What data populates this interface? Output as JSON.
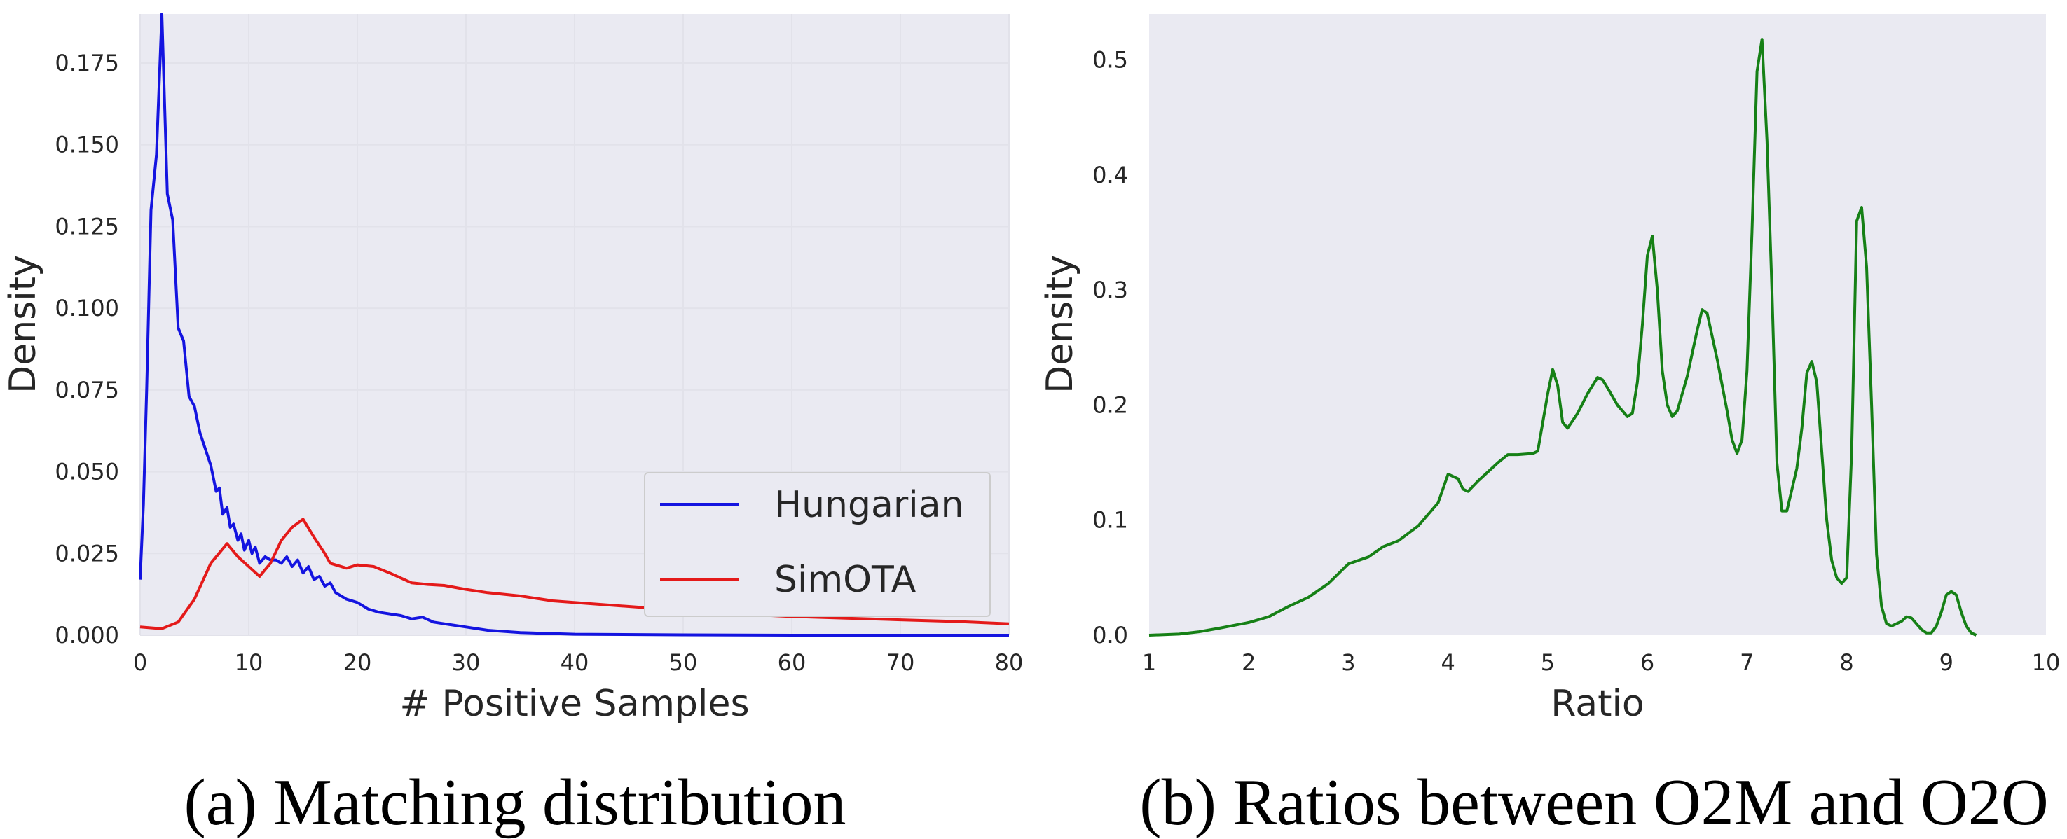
{
  "chart_data": [
    {
      "type": "line",
      "caption": "(a) Matching distribution",
      "xlabel": "# Positive Samples",
      "ylabel": "Density",
      "xlim": [
        0,
        80
      ],
      "ylim": [
        0,
        0.19
      ],
      "xticks": [
        0,
        10,
        20,
        30,
        40,
        50,
        60,
        70,
        80
      ],
      "xtick_labels": [
        "0",
        "10",
        "20",
        "30",
        "40",
        "50",
        "60",
        "70",
        "80"
      ],
      "yticks": [
        0,
        0.025,
        0.05,
        0.075,
        0.1,
        0.125,
        0.15,
        0.175
      ],
      "ytick_labels": [
        "0.000",
        "0.025",
        "0.050",
        "0.075",
        "0.100",
        "0.125",
        "0.150",
        "0.175"
      ],
      "grid": true,
      "legend_position": "lower-right",
      "series": [
        {
          "name": "Hungarian",
          "color": "#1414e0",
          "points": [
            [
              0,
              0.017
            ],
            [
              0.3,
              0.04
            ],
            [
              0.6,
              0.075
            ],
            [
              1,
              0.13
            ],
            [
              1.5,
              0.147
            ],
            [
              2,
              0.19
            ],
            [
              2.5,
              0.135
            ],
            [
              3,
              0.127
            ],
            [
              3.5,
              0.094
            ],
            [
              4,
              0.09
            ],
            [
              4.5,
              0.073
            ],
            [
              5,
              0.07
            ],
            [
              5.5,
              0.062
            ],
            [
              6,
              0.057
            ],
            [
              6.5,
              0.052
            ],
            [
              7,
              0.044
            ],
            [
              7.3,
              0.045
            ],
            [
              7.6,
              0.037
            ],
            [
              8,
              0.039
            ],
            [
              8.3,
              0.033
            ],
            [
              8.6,
              0.034
            ],
            [
              9,
              0.029
            ],
            [
              9.3,
              0.031
            ],
            [
              9.6,
              0.026
            ],
            [
              10,
              0.029
            ],
            [
              10.3,
              0.025
            ],
            [
              10.6,
              0.027
            ],
            [
              11,
              0.022
            ],
            [
              11.5,
              0.024
            ],
            [
              12,
              0.023
            ],
            [
              12.5,
              0.023
            ],
            [
              13,
              0.022
            ],
            [
              13.5,
              0.024
            ],
            [
              14,
              0.021
            ],
            [
              14.5,
              0.023
            ],
            [
              15,
              0.019
            ],
            [
              15.5,
              0.021
            ],
            [
              16,
              0.017
            ],
            [
              16.5,
              0.018
            ],
            [
              17,
              0.015
            ],
            [
              17.5,
              0.016
            ],
            [
              18,
              0.013
            ],
            [
              18.5,
              0.012
            ],
            [
              19,
              0.011
            ],
            [
              20,
              0.01
            ],
            [
              21,
              0.008
            ],
            [
              22,
              0.007
            ],
            [
              23,
              0.0065
            ],
            [
              24,
              0.006
            ],
            [
              25,
              0.005
            ],
            [
              26,
              0.0055
            ],
            [
              27,
              0.004
            ],
            [
              28,
              0.0035
            ],
            [
              29,
              0.003
            ],
            [
              30,
              0.0025
            ],
            [
              32,
              0.0015
            ],
            [
              35,
              0.0008
            ],
            [
              40,
              0.0003
            ],
            [
              50,
              0.0001
            ],
            [
              60,
              0.0
            ],
            [
              70,
              0.0
            ],
            [
              80,
              0.0
            ]
          ]
        },
        {
          "name": "SimOTA",
          "color": "#e41a1a",
          "points": [
            [
              0,
              0.0025
            ],
            [
              2,
              0.002
            ],
            [
              3.5,
              0.004
            ],
            [
              5,
              0.011
            ],
            [
              6.5,
              0.022
            ],
            [
              8,
              0.028
            ],
            [
              9,
              0.024
            ],
            [
              10,
              0.021
            ],
            [
              11,
              0.018
            ],
            [
              12,
              0.022
            ],
            [
              13,
              0.029
            ],
            [
              14,
              0.033
            ],
            [
              15,
              0.0355
            ],
            [
              16,
              0.03
            ],
            [
              17,
              0.025
            ],
            [
              17.5,
              0.022
            ],
            [
              19,
              0.0205
            ],
            [
              20,
              0.0215
            ],
            [
              21.5,
              0.021
            ],
            [
              23,
              0.019
            ],
            [
              25,
              0.016
            ],
            [
              26.5,
              0.0155
            ],
            [
              28,
              0.0152
            ],
            [
              30,
              0.014
            ],
            [
              32,
              0.013
            ],
            [
              35,
              0.012
            ],
            [
              38,
              0.0105
            ],
            [
              42,
              0.0095
            ],
            [
              47,
              0.0083
            ],
            [
              52,
              0.007
            ],
            [
              55,
              0.0065
            ],
            [
              60,
              0.0057
            ],
            [
              65,
              0.0052
            ],
            [
              70,
              0.0047
            ],
            [
              75,
              0.0042
            ],
            [
              80,
              0.0035
            ]
          ]
        }
      ]
    },
    {
      "type": "line",
      "caption": "(b) Ratios between O2M and O2O",
      "xlabel": "Ratio",
      "ylabel": "Density",
      "xlim": [
        1,
        10
      ],
      "ylim": [
        0,
        0.54
      ],
      "xticks": [
        1,
        2,
        3,
        4,
        5,
        6,
        7,
        8,
        9,
        10
      ],
      "xtick_labels": [
        "1",
        "2",
        "3",
        "4",
        "5",
        "6",
        "7",
        "8",
        "9",
        "10"
      ],
      "yticks": [
        0,
        0.1,
        0.2,
        0.3,
        0.4,
        0.5
      ],
      "ytick_labels": [
        "0.0",
        "0.1",
        "0.2",
        "0.3",
        "0.4",
        "0.5"
      ],
      "grid": false,
      "series": [
        {
          "color": "#168016",
          "points": [
            [
              1,
              0.0
            ],
            [
              1.3,
              0.001
            ],
            [
              1.5,
              0.003
            ],
            [
              1.7,
              0.006
            ],
            [
              2,
              0.011
            ],
            [
              2.2,
              0.016
            ],
            [
              2.4,
              0.025
            ],
            [
              2.6,
              0.033
            ],
            [
              2.8,
              0.045
            ],
            [
              3,
              0.062
            ],
            [
              3.2,
              0.068
            ],
            [
              3.35,
              0.077
            ],
            [
              3.5,
              0.082
            ],
            [
              3.7,
              0.095
            ],
            [
              3.9,
              0.115
            ],
            [
              4,
              0.14
            ],
            [
              4.1,
              0.136
            ],
            [
              4.15,
              0.127
            ],
            [
              4.2,
              0.125
            ],
            [
              4.3,
              0.134
            ],
            [
              4.5,
              0.15
            ],
            [
              4.6,
              0.157
            ],
            [
              4.7,
              0.157
            ],
            [
              4.85,
              0.158
            ],
            [
              4.9,
              0.16
            ],
            [
              5,
              0.21
            ],
            [
              5.05,
              0.231
            ],
            [
              5.1,
              0.217
            ],
            [
              5.15,
              0.185
            ],
            [
              5.2,
              0.18
            ],
            [
              5.3,
              0.193
            ],
            [
              5.4,
              0.21
            ],
            [
              5.5,
              0.224
            ],
            [
              5.55,
              0.222
            ],
            [
              5.6,
              0.215
            ],
            [
              5.7,
              0.2
            ],
            [
              5.8,
              0.19
            ],
            [
              5.85,
              0.193
            ],
            [
              5.9,
              0.22
            ],
            [
              5.95,
              0.27
            ],
            [
              6,
              0.33
            ],
            [
              6.05,
              0.347
            ],
            [
              6.1,
              0.3
            ],
            [
              6.15,
              0.23
            ],
            [
              6.2,
              0.2
            ],
            [
              6.25,
              0.19
            ],
            [
              6.3,
              0.195
            ],
            [
              6.4,
              0.225
            ],
            [
              6.5,
              0.265
            ],
            [
              6.55,
              0.283
            ],
            [
              6.6,
              0.28
            ],
            [
              6.7,
              0.24
            ],
            [
              6.8,
              0.195
            ],
            [
              6.85,
              0.17
            ],
            [
              6.9,
              0.158
            ],
            [
              6.95,
              0.17
            ],
            [
              7,
              0.23
            ],
            [
              7.05,
              0.35
            ],
            [
              7.1,
              0.49
            ],
            [
              7.15,
              0.518
            ],
            [
              7.2,
              0.43
            ],
            [
              7.25,
              0.3
            ],
            [
              7.3,
              0.15
            ],
            [
              7.35,
              0.108
            ],
            [
              7.4,
              0.108
            ],
            [
              7.5,
              0.145
            ],
            [
              7.55,
              0.18
            ],
            [
              7.6,
              0.228
            ],
            [
              7.65,
              0.238
            ],
            [
              7.7,
              0.22
            ],
            [
              7.75,
              0.16
            ],
            [
              7.8,
              0.1
            ],
            [
              7.85,
              0.065
            ],
            [
              7.9,
              0.05
            ],
            [
              7.95,
              0.045
            ],
            [
              8,
              0.05
            ],
            [
              8.05,
              0.16
            ],
            [
              8.1,
              0.36
            ],
            [
              8.15,
              0.372
            ],
            [
              8.2,
              0.32
            ],
            [
              8.25,
              0.2
            ],
            [
              8.3,
              0.07
            ],
            [
              8.35,
              0.025
            ],
            [
              8.4,
              0.01
            ],
            [
              8.45,
              0.008
            ],
            [
              8.55,
              0.012
            ],
            [
              8.6,
              0.016
            ],
            [
              8.65,
              0.015
            ],
            [
              8.75,
              0.005
            ],
            [
              8.8,
              0.002
            ],
            [
              8.85,
              0.002
            ],
            [
              8.9,
              0.008
            ],
            [
              8.95,
              0.02
            ],
            [
              9,
              0.035
            ],
            [
              9.05,
              0.038
            ],
            [
              9.1,
              0.035
            ],
            [
              9.15,
              0.02
            ],
            [
              9.2,
              0.008
            ],
            [
              9.25,
              0.002
            ],
            [
              9.3,
              0.0
            ]
          ]
        }
      ]
    }
  ]
}
